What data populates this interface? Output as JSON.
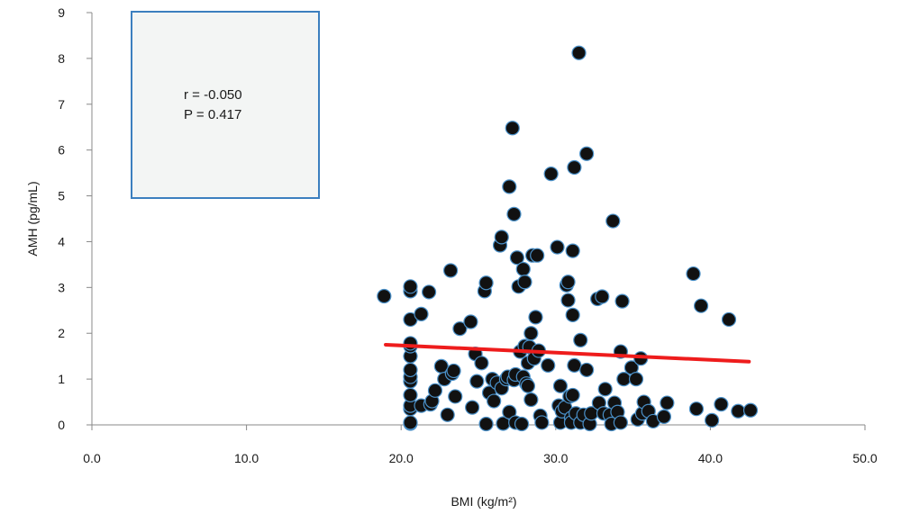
{
  "chart_data": {
    "type": "scatter",
    "title": "",
    "xlabel": "BMI (kg/m²)",
    "ylabel": "AMH (pg/mL)",
    "xlim": [
      0,
      50
    ],
    "ylim": [
      0,
      9
    ],
    "x_ticks": [
      "0.0",
      "10.0",
      "20.0",
      "30.0",
      "40.0",
      "50.0"
    ],
    "y_ticks": [
      "0",
      "1",
      "2",
      "3",
      "4",
      "5",
      "6",
      "7",
      "8",
      "9"
    ],
    "grid": false,
    "annotation": {
      "r_text": "r = -0.050",
      "p_text": "P = 0.417"
    },
    "trend_line": {
      "x": [
        19.0,
        42.5
      ],
      "y": [
        1.75,
        1.38
      ],
      "color": "#ee1c1c"
    },
    "marker_fill": "#111111",
    "marker_edge": "#4a90c8",
    "points": [
      [
        18.9,
        2.81
      ],
      [
        20.6,
        0.03
      ],
      [
        20.6,
        0.05
      ],
      [
        20.6,
        0.35
      ],
      [
        20.6,
        0.42
      ],
      [
        20.6,
        0.65
      ],
      [
        20.6,
        0.95
      ],
      [
        20.6,
        1.05
      ],
      [
        20.6,
        1.2
      ],
      [
        20.6,
        1.5
      ],
      [
        20.6,
        1.72
      ],
      [
        20.6,
        1.78
      ],
      [
        20.6,
        2.3
      ],
      [
        20.6,
        2.92
      ],
      [
        20.6,
        3.02
      ],
      [
        21.3,
        2.42
      ],
      [
        21.3,
        0.42
      ],
      [
        21.8,
        2.9
      ],
      [
        21.9,
        0.45
      ],
      [
        22.0,
        0.52
      ],
      [
        22.2,
        0.75
      ],
      [
        22.6,
        1.28
      ],
      [
        22.8,
        1.0
      ],
      [
        23.0,
        0.22
      ],
      [
        23.2,
        3.37
      ],
      [
        23.3,
        1.12
      ],
      [
        23.4,
        1.18
      ],
      [
        23.5,
        0.62
      ],
      [
        23.8,
        2.1
      ],
      [
        24.5,
        2.25
      ],
      [
        24.6,
        0.38
      ],
      [
        24.8,
        1.55
      ],
      [
        24.9,
        0.95
      ],
      [
        25.2,
        1.35
      ],
      [
        25.4,
        2.92
      ],
      [
        25.5,
        3.1
      ],
      [
        25.5,
        0.02
      ],
      [
        25.7,
        0.7
      ],
      [
        25.9,
        1.0
      ],
      [
        26.0,
        0.52
      ],
      [
        26.2,
        0.92
      ],
      [
        26.4,
        3.92
      ],
      [
        26.5,
        4.1
      ],
      [
        26.5,
        0.8
      ],
      [
        26.6,
        0.03
      ],
      [
        26.8,
        1.0
      ],
      [
        26.9,
        1.05
      ],
      [
        27.0,
        5.2
      ],
      [
        27.0,
        0.28
      ],
      [
        27.2,
        6.48
      ],
      [
        27.3,
        4.6
      ],
      [
        27.3,
        0.98
      ],
      [
        27.4,
        1.1
      ],
      [
        27.4,
        0.05
      ],
      [
        27.5,
        3.65
      ],
      [
        27.6,
        3.02
      ],
      [
        27.7,
        1.6
      ],
      [
        27.8,
        0.02
      ],
      [
        27.9,
        3.4
      ],
      [
        27.9,
        1.05
      ],
      [
        28.0,
        3.12
      ],
      [
        28.0,
        1.72
      ],
      [
        28.1,
        0.9
      ],
      [
        28.2,
        1.35
      ],
      [
        28.2,
        0.85
      ],
      [
        28.3,
        1.7
      ],
      [
        28.4,
        2.0
      ],
      [
        28.4,
        0.55
      ],
      [
        28.5,
        3.7
      ],
      [
        28.6,
        1.45
      ],
      [
        28.7,
        2.35
      ],
      [
        28.8,
        3.7
      ],
      [
        28.9,
        1.62
      ],
      [
        29.0,
        0.2
      ],
      [
        29.1,
        0.05
      ],
      [
        29.5,
        1.3
      ],
      [
        29.7,
        5.48
      ],
      [
        30.1,
        3.88
      ],
      [
        30.2,
        0.42
      ],
      [
        30.3,
        0.85
      ],
      [
        30.3,
        0.05
      ],
      [
        30.4,
        0.3
      ],
      [
        30.6,
        0.38
      ],
      [
        30.7,
        3.05
      ],
      [
        30.8,
        3.12
      ],
      [
        30.8,
        2.72
      ],
      [
        30.9,
        0.62
      ],
      [
        31.0,
        0.15
      ],
      [
        31.0,
        0.05
      ],
      [
        31.1,
        3.8
      ],
      [
        31.1,
        2.4
      ],
      [
        31.1,
        0.65
      ],
      [
        31.2,
        5.62
      ],
      [
        31.2,
        1.3
      ],
      [
        31.3,
        0.25
      ],
      [
        31.5,
        8.12
      ],
      [
        31.6,
        1.85
      ],
      [
        31.6,
        0.05
      ],
      [
        31.8,
        0.22
      ],
      [
        32.0,
        5.92
      ],
      [
        32.0,
        1.2
      ],
      [
        32.2,
        0.02
      ],
      [
        32.3,
        0.25
      ],
      [
        32.7,
        2.75
      ],
      [
        32.8,
        0.48
      ],
      [
        33.0,
        2.8
      ],
      [
        33.1,
        0.25
      ],
      [
        33.2,
        0.78
      ],
      [
        33.5,
        0.22
      ],
      [
        33.6,
        0.02
      ],
      [
        33.7,
        4.45
      ],
      [
        33.8,
        0.48
      ],
      [
        34.0,
        0.28
      ],
      [
        34.2,
        0.05
      ],
      [
        34.2,
        1.6
      ],
      [
        34.3,
        2.7
      ],
      [
        34.4,
        1.0
      ],
      [
        34.9,
        1.25
      ],
      [
        35.2,
        1.0
      ],
      [
        35.3,
        0.12
      ],
      [
        35.5,
        1.45
      ],
      [
        35.6,
        0.25
      ],
      [
        35.7,
        0.5
      ],
      [
        36.0,
        0.3
      ],
      [
        36.3,
        0.08
      ],
      [
        37.0,
        0.18
      ],
      [
        37.2,
        0.48
      ],
      [
        38.9,
        3.3
      ],
      [
        39.1,
        0.35
      ],
      [
        39.4,
        2.6
      ],
      [
        40.1,
        0.1
      ],
      [
        40.7,
        0.45
      ],
      [
        41.2,
        2.3
      ],
      [
        41.8,
        0.3
      ],
      [
        42.6,
        0.32
      ]
    ]
  }
}
